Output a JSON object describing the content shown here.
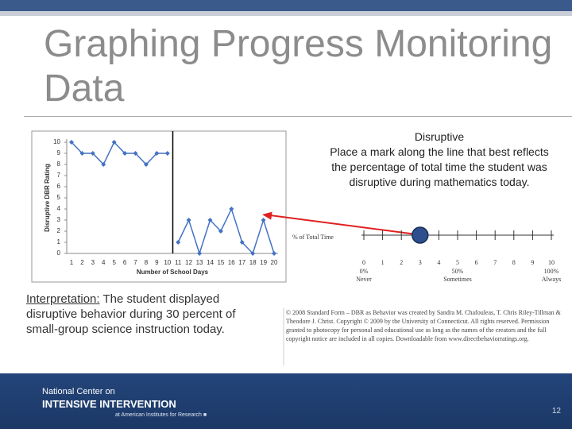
{
  "header": {
    "title": "Graphing Progress Monitoring Data"
  },
  "chart_data": {
    "type": "line",
    "x_label": "Number of School Days",
    "y_label": "Disruptive DBR Rating",
    "categories": [
      "1",
      "2",
      "3",
      "4",
      "5",
      "6",
      "7",
      "8",
      "9",
      "10",
      "11",
      "12",
      "13",
      "14",
      "15",
      "16",
      "17",
      "18",
      "19",
      "20"
    ],
    "series": [
      {
        "color": "#4472c4",
        "values": [
          10,
          9,
          9,
          8,
          10,
          9,
          9,
          8,
          9,
          9,
          null,
          null,
          null,
          null,
          null,
          null,
          null,
          null,
          null,
          null
        ]
      },
      {
        "color": "#4472c4",
        "values": [
          null,
          null,
          null,
          null,
          null,
          null,
          null,
          null,
          null,
          null,
          1,
          3,
          0,
          3,
          2,
          4,
          1,
          0,
          3,
          0
        ]
      }
    ],
    "ylim": [
      0,
      10
    ],
    "yticks": [
      0,
      1,
      2,
      3,
      4,
      5,
      6,
      7,
      8,
      9,
      10
    ],
    "grid": false
  },
  "instruction": {
    "heading": "Disruptive",
    "text": "Place a mark along the line that best reflects the percentage of total time the student was disruptive during mathematics today."
  },
  "scale": {
    "title": "% of Total Time",
    "ticks": [
      0,
      1,
      2,
      3,
      4,
      5,
      6,
      7,
      8,
      9,
      10
    ],
    "percent_labels": [
      {
        "value": 0,
        "label": "0%"
      },
      {
        "value": 5,
        "label": "50%"
      },
      {
        "value": 10,
        "label": "100%"
      }
    ],
    "anchor_labels": [
      {
        "value": 0,
        "label": "Never"
      },
      {
        "value": 5,
        "label": "Sometimes"
      },
      {
        "value": 10,
        "label": "Always"
      }
    ],
    "mark": 3
  },
  "interpretation": {
    "label": "Interpretation:",
    "text": "The student displayed disruptive behavior during 30 percent of small-group science instruction today."
  },
  "copyright": "© 2008 Standard Form – DBR as Behavior was created by Sandra M. Chafouleas, T. Chris Riley-Tillman & Theodore J. Christ. Copyright © 2009 by the University of Connecticut. All rights reserved. Permission granted to photocopy for personal and educational use as long as the names of the creators and the full copyright notice are included in all copies. Downloadable from www.directbehaviorratings.org.",
  "footer": {
    "org_line1": "National Center on",
    "org_line2": "INTENSIVE INTERVENTION",
    "org_line3": "at American Institutes for Research ■",
    "page": "12"
  }
}
